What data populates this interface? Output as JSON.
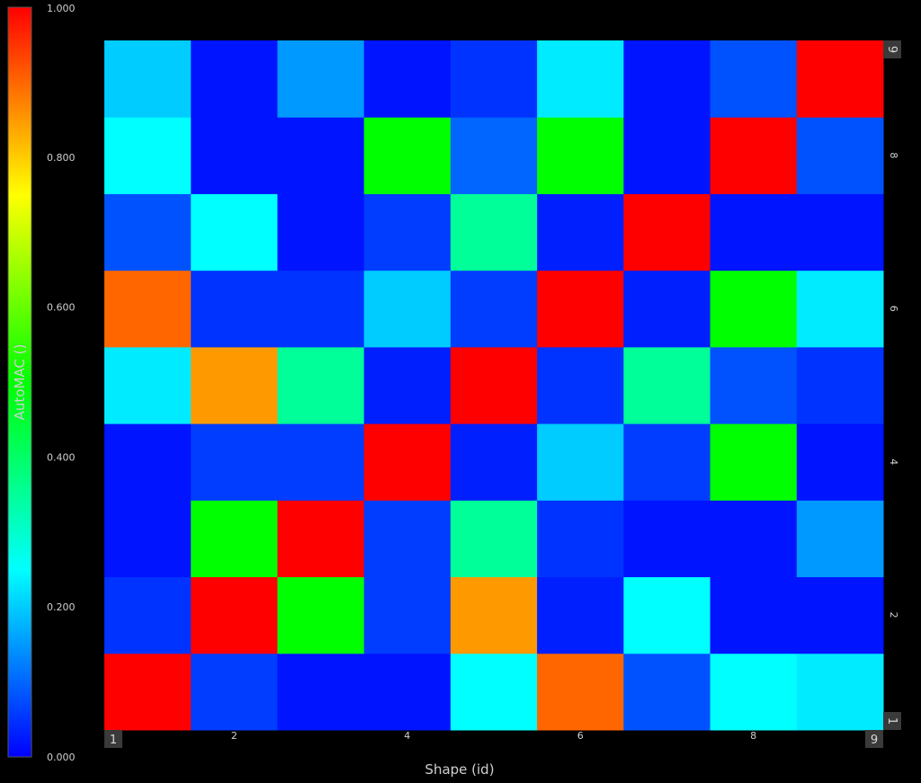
{
  "chart_data": {
    "type": "heatmap",
    "title": "",
    "xlabel": "Shape (id)",
    "ylabel": "",
    "x": [
      1,
      2,
      3,
      4,
      5,
      6,
      7,
      8,
      9
    ],
    "y": [
      1,
      2,
      3,
      4,
      5,
      6,
      7,
      8,
      9
    ],
    "x_tick_labels": [
      "2",
      "4",
      "6",
      "8"
    ],
    "x_end_labels": [
      "1",
      "9"
    ],
    "y_tick_labels": [
      "2",
      "4",
      "6",
      "8"
    ],
    "y_end_labels": [
      "1",
      "9"
    ],
    "values": [
      [
        1.0,
        0.06,
        0.02,
        0.02,
        0.25,
        0.9,
        0.08,
        0.25,
        0.23
      ],
      [
        0.05,
        1.0,
        0.5,
        0.06,
        0.85,
        0.03,
        0.25,
        0.02,
        0.02
      ],
      [
        0.02,
        0.5,
        1.0,
        0.06,
        0.35,
        0.05,
        0.02,
        0.02,
        0.15
      ],
      [
        0.02,
        0.06,
        0.06,
        1.0,
        0.03,
        0.2,
        0.06,
        0.5,
        0.02
      ],
      [
        0.23,
        0.85,
        0.35,
        0.03,
        1.0,
        0.05,
        0.35,
        0.08,
        0.05
      ],
      [
        0.9,
        0.05,
        0.05,
        0.2,
        0.06,
        1.0,
        0.03,
        0.5,
        0.23
      ],
      [
        0.08,
        0.25,
        0.02,
        0.06,
        0.35,
        0.03,
        1.0,
        0.02,
        0.02
      ],
      [
        0.25,
        0.02,
        0.02,
        0.5,
        0.1,
        0.5,
        0.02,
        1.0,
        0.08
      ],
      [
        0.2,
        0.02,
        0.15,
        0.02,
        0.05,
        0.23,
        0.02,
        0.08,
        1.0
      ]
    ],
    "colorbar": {
      "label": "AutoMAC ()",
      "range": [
        0,
        1
      ],
      "tick_labels": [
        "0.000",
        "0.200",
        "0.400",
        "0.600",
        "0.800",
        "1.000"
      ],
      "tick_values": [
        0,
        0.2,
        0.4,
        0.6,
        0.8,
        1.0
      ]
    }
  }
}
